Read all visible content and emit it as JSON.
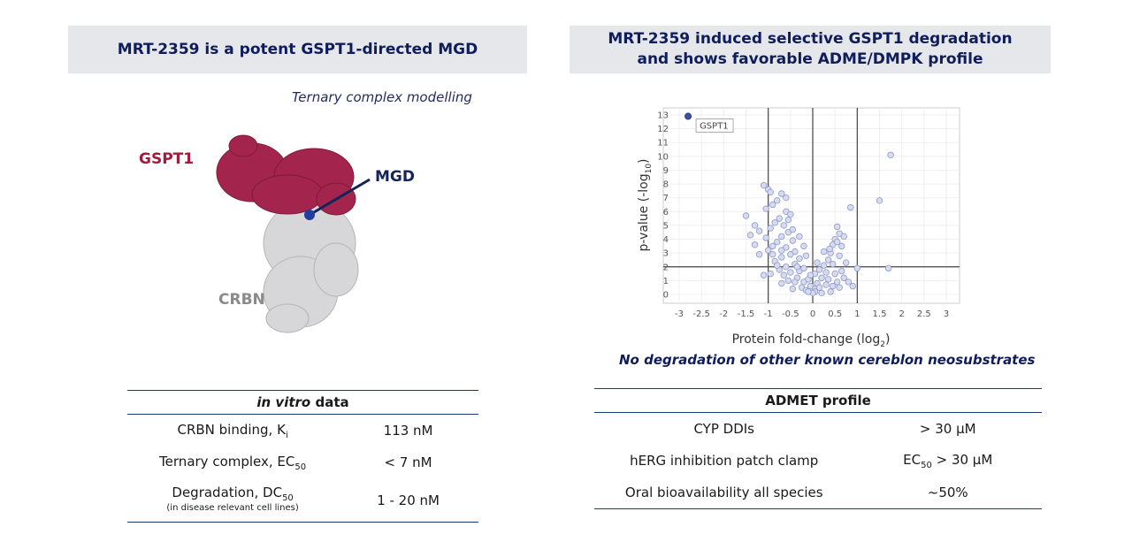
{
  "left": {
    "header": "MRT-2359 is a potent GSPT1-directed MGD",
    "ternary_label": "Ternary complex modelling",
    "labels": {
      "gspt1": "GSPT1",
      "mgd": "MGD",
      "crbn": "CRBN"
    },
    "table": {
      "title_italic": "in vitro",
      "title_rest": " data",
      "rows": [
        {
          "label_main": "CRBN binding, K",
          "label_sub": "i",
          "value": "113 nM"
        },
        {
          "label_main": "Ternary complex, EC",
          "label_sub": "50",
          "value": "< 7 nM"
        },
        {
          "label_main": "Degradation, DC",
          "label_sub": "50",
          "note": "(in disease relevant cell lines)",
          "value": "1 - 20 nM"
        }
      ]
    }
  },
  "right": {
    "header_line1": "MRT-2359 induced selective GSPT1 degradation",
    "header_line2": "and shows favorable ADME/DMPK profile",
    "note": "No degradation of other known cereblon neosubstrates",
    "table": {
      "title": "ADMET profile",
      "rows": [
        {
          "label": "CYP DDIs",
          "value": "> 30 µM"
        },
        {
          "label": "hERG inhibition patch clamp",
          "value_main": "EC",
          "value_sub": "50",
          "value_rest": " > 30 µM"
        },
        {
          "label": "Oral bioavailability all species",
          "value": "~50%"
        }
      ]
    }
  },
  "chart_data": {
    "type": "scatter",
    "xlabel_main": "Protein fold-change (log",
    "xlabel_sub": "2",
    "xlabel_end": ")",
    "ylabel_main": "p-value (-log",
    "ylabel_sub": "10",
    "ylabel_end": ")",
    "xlim": [
      -3,
      3
    ],
    "ylim": [
      0,
      13
    ],
    "x_ticks": [
      "-3",
      "-2.5",
      "-2",
      "-1.5",
      "-1",
      "-0.5",
      "0",
      "0.5",
      "1",
      "1.5",
      "2",
      "2.5",
      "3"
    ],
    "y_ticks": [
      "0",
      "1",
      "2",
      "3",
      "4",
      "5",
      "6",
      "7",
      "8",
      "9",
      "10",
      "11",
      "12",
      "13"
    ],
    "thresholds": {
      "x": [
        -1,
        0,
        1
      ],
      "y": 2
    },
    "highlight": {
      "label": "GSPT1",
      "x": -2.8,
      "y": 12.9,
      "color": "#3d4fa0"
    },
    "points": [
      [
        1.75,
        10.1
      ],
      [
        1.5,
        6.8
      ],
      [
        1.7,
        1.9
      ],
      [
        -1.5,
        5.7
      ],
      [
        -1.3,
        5.0
      ],
      [
        -1.2,
        4.6
      ],
      [
        -1.1,
        7.9
      ],
      [
        -1.0,
        7.6
      ],
      [
        -1.05,
        6.2
      ],
      [
        -0.9,
        6.5
      ],
      [
        -0.8,
        6.8
      ],
      [
        -0.7,
        7.3
      ],
      [
        -0.6,
        6.0
      ],
      [
        -0.75,
        5.5
      ],
      [
        -0.85,
        5.2
      ],
      [
        -0.95,
        4.8
      ],
      [
        -0.65,
        5.0
      ],
      [
        -0.55,
        4.5
      ],
      [
        -0.5,
        5.8
      ],
      [
        -0.45,
        3.9
      ],
      [
        -0.7,
        4.2
      ],
      [
        -0.8,
        3.8
      ],
      [
        -0.9,
        3.5
      ],
      [
        -1.0,
        3.2
      ],
      [
        -0.6,
        3.4
      ],
      [
        -0.4,
        3.1
      ],
      [
        -0.5,
        2.9
      ],
      [
        -0.7,
        2.7
      ],
      [
        -0.85,
        2.4
      ],
      [
        -0.3,
        2.6
      ],
      [
        -0.4,
        2.2
      ],
      [
        -0.6,
        2.0
      ],
      [
        -0.75,
        1.8
      ],
      [
        -0.95,
        1.5
      ],
      [
        -1.1,
        1.4
      ],
      [
        -0.5,
        1.6
      ],
      [
        -0.3,
        1.7
      ],
      [
        -0.2,
        1.9
      ],
      [
        -0.35,
        1.2
      ],
      [
        -0.55,
        1.0
      ],
      [
        -0.7,
        0.8
      ],
      [
        -0.2,
        0.9
      ],
      [
        -0.1,
        1.1
      ],
      [
        -0.25,
        0.5
      ],
      [
        -0.45,
        0.4
      ],
      [
        -0.15,
        0.3
      ],
      [
        -0.05,
        0.6
      ],
      [
        0.05,
        0.4
      ],
      [
        0.1,
        0.8
      ],
      [
        0.2,
        1.2
      ],
      [
        0.3,
        1.6
      ],
      [
        0.25,
        2.1
      ],
      [
        0.35,
        2.5
      ],
      [
        0.4,
        3.0
      ],
      [
        0.45,
        3.6
      ],
      [
        0.5,
        4.0
      ],
      [
        0.38,
        3.3
      ],
      [
        0.55,
        4.9
      ],
      [
        0.6,
        2.8
      ],
      [
        0.15,
        1.8
      ],
      [
        0.05,
        1.5
      ],
      [
        0.65,
        1.7
      ],
      [
        0.7,
        1.2
      ],
      [
        0.8,
        0.9
      ],
      [
        0.9,
        0.6
      ],
      [
        0.6,
        0.5
      ],
      [
        0.4,
        0.2
      ],
      [
        0.2,
        0.1
      ],
      [
        0.05,
        0.2
      ],
      [
        0.75,
        2.3
      ],
      [
        0.55,
        3.8
      ],
      [
        0.45,
        2.2
      ],
      [
        0.3,
        0.7
      ],
      [
        0.15,
        0.5
      ],
      [
        0.0,
        0.1
      ],
      [
        -0.1,
        0.2
      ],
      [
        0.85,
        6.3
      ],
      [
        1.0,
        1.9
      ],
      [
        -1.4,
        4.3
      ],
      [
        -1.2,
        2.9
      ],
      [
        -1.3,
        3.6
      ],
      [
        -0.6,
        7.0
      ],
      [
        -0.95,
        7.4
      ],
      [
        -0.3,
        4.2
      ],
      [
        -0.2,
        3.5
      ],
      [
        -0.15,
        2.8
      ],
      [
        0.1,
        2.3
      ],
      [
        0.25,
        3.1
      ],
      [
        0.65,
        3.5
      ],
      [
        0.5,
        1.5
      ],
      [
        -0.8,
        2.1
      ],
      [
        -0.65,
        1.4
      ],
      [
        -0.4,
        0.9
      ],
      [
        -0.05,
        1.4
      ],
      [
        0.35,
        1.1
      ],
      [
        0.55,
        0.9
      ],
      [
        -0.9,
        2.9
      ],
      [
        -0.45,
        4.7
      ],
      [
        -0.55,
        5.4
      ],
      [
        -0.35,
        2.0
      ],
      [
        0.6,
        4.4
      ],
      [
        0.7,
        4.2
      ],
      [
        0.45,
        0.6
      ],
      [
        -1.05,
        4.1
      ],
      [
        -0.7,
        3.2
      ]
    ]
  }
}
